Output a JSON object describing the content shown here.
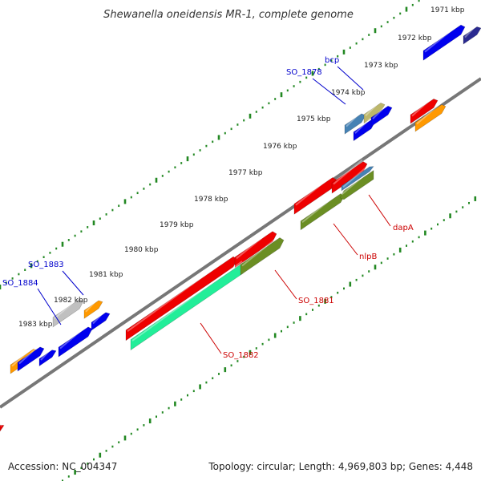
{
  "title": "Shewanella oneidensis MR-1, complete genome",
  "footer": {
    "accession": "Accession: NC_004347",
    "summary": "Topology: circular; Length: 4,969,803 bp; Genes: 4,448"
  },
  "kbp_labels": [
    "1971 kbp",
    "1972 kbp",
    "1973 kbp",
    "1974 kbp",
    "1975 kbp",
    "1976 kbp",
    "1977 kbp",
    "1978 kbp",
    "1979 kbp",
    "1980 kbp",
    "1981 kbp",
    "1982 kbp",
    "1983 kbp"
  ],
  "gene_labels": [
    {
      "text": "bcp",
      "color": "#0000cc"
    },
    {
      "text": "SO_1878",
      "color": "#0000cc"
    },
    {
      "text": "SO_1883",
      "color": "#0000cc"
    },
    {
      "text": "SO_1884",
      "color": "#0000cc"
    },
    {
      "text": "dapA",
      "color": "#cc0000"
    },
    {
      "text": "nlpB",
      "color": "#cc0000"
    },
    {
      "text": "SO_1881",
      "color": "#cc0000"
    },
    {
      "text": "SO_1882",
      "color": "#cc0000"
    }
  ],
  "colors": {
    "red": "#ee0000",
    "blue": "#0000ee",
    "navy": "#2a2a90",
    "orange": "#ff9900",
    "olive": "#6b8e23",
    "aqua": "#22ee99",
    "steel": "#4682b4",
    "khaki": "#bdb76b",
    "silver": "#c0c0c0",
    "backbone": "#777777",
    "ticks": "#228822"
  }
}
